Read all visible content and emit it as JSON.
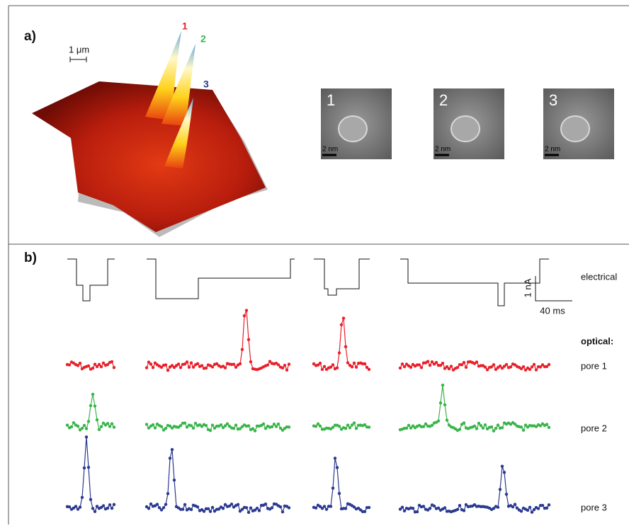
{
  "panel_a": {
    "label": "a)",
    "scale_bar": "1 μm",
    "peak_labels": [
      "1",
      "2",
      "3"
    ],
    "tem_images": [
      {
        "number": "1",
        "scale": "2 nm"
      },
      {
        "number": "2",
        "scale": "2 nm"
      },
      {
        "number": "3",
        "scale": "2 nm"
      }
    ]
  },
  "panel_b": {
    "label": "b)",
    "electrical": "electrical",
    "scale_current": "1 nA",
    "scale_time": "40 ms",
    "optical": "optical:",
    "pores": [
      "pore 1",
      "pore 2",
      "pore 3"
    ]
  }
}
